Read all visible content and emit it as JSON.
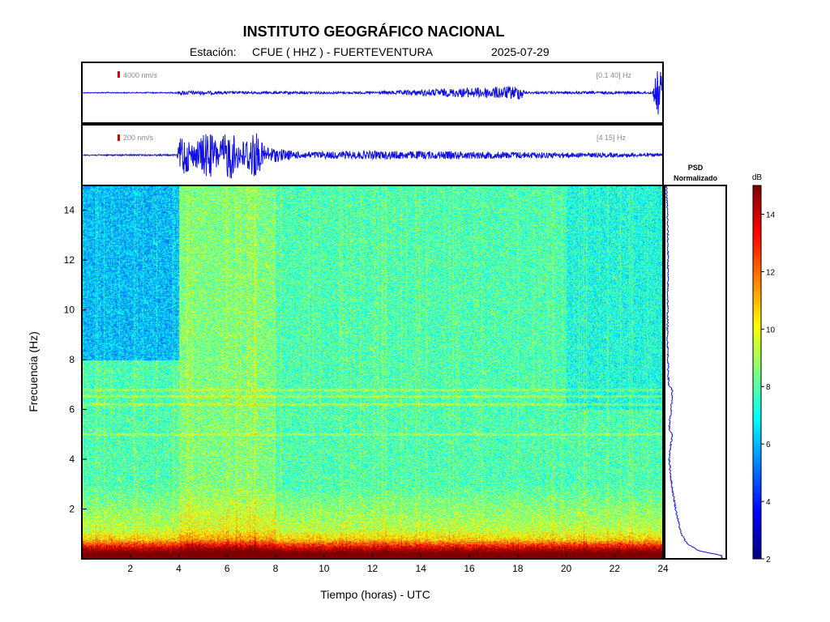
{
  "header": {
    "title": "INSTITUTO GEOGRÁFICO NACIONAL",
    "station_prefix": "Estación:",
    "station": "CFUE ( HHZ ) - FUERTEVENTURA",
    "date": "2025-07-29"
  },
  "colors": {
    "trace": "#1010e6",
    "scale_marker": "#e00000",
    "frame": "#000000"
  },
  "chart_data": [
    {
      "type": "line",
      "name": "seismogram-broadband",
      "scale_label": "4000 nm/s",
      "filter_label": "[0.1 40] Hz",
      "x_range": [
        0,
        24
      ],
      "envelope": [
        {
          "t": 0,
          "a": 0.015
        },
        {
          "t": 3.8,
          "a": 0.02
        },
        {
          "t": 4.1,
          "a": 0.08
        },
        {
          "t": 6,
          "a": 0.05
        },
        {
          "t": 12,
          "a": 0.04
        },
        {
          "t": 18.2,
          "a": 0.25
        },
        {
          "t": 18.3,
          "a": 0.04
        },
        {
          "t": 23.6,
          "a": 0.05
        },
        {
          "t": 23.8,
          "a": 0.9
        },
        {
          "t": 24,
          "a": 0.7
        }
      ]
    },
    {
      "type": "line",
      "name": "seismogram-filtered",
      "scale_label": "200 nm/s",
      "filter_label": "[4 15] Hz",
      "x_range": [
        0,
        24
      ],
      "envelope": [
        {
          "t": 0,
          "a": 0.02
        },
        {
          "t": 3.9,
          "a": 0.03
        },
        {
          "t": 4.1,
          "a": 0.85
        },
        {
          "t": 4.6,
          "a": 0.4
        },
        {
          "t": 5.2,
          "a": 0.9
        },
        {
          "t": 5.6,
          "a": 0.5
        },
        {
          "t": 6.1,
          "a": 0.95
        },
        {
          "t": 6.5,
          "a": 0.4
        },
        {
          "t": 7.1,
          "a": 0.95
        },
        {
          "t": 7.5,
          "a": 0.35
        },
        {
          "t": 8.0,
          "a": 0.25
        },
        {
          "t": 9.0,
          "a": 0.12
        },
        {
          "t": 12.0,
          "a": 0.15
        },
        {
          "t": 15.0,
          "a": 0.14
        },
        {
          "t": 18.0,
          "a": 0.12
        },
        {
          "t": 21.0,
          "a": 0.08
        },
        {
          "t": 24,
          "a": 0.06
        }
      ]
    },
    {
      "type": "heatmap",
      "name": "spectrogram",
      "xlabel": "Tiempo (horas) - UTC",
      "ylabel": "Frecuencia  (Hz)",
      "xlim": [
        0,
        24
      ],
      "ylim": [
        0,
        15
      ],
      "x_ticks": [
        2,
        4,
        6,
        8,
        10,
        12,
        14,
        16,
        18,
        20,
        22,
        24
      ],
      "y_ticks": [
        2,
        4,
        6,
        8,
        10,
        12,
        14
      ],
      "colorscale": "jet",
      "quiet_low_energy_region": {
        "t_start": 0,
        "t_end": 4,
        "f_start": 8,
        "f_end": 15
      },
      "harmonic_lines_hz": [
        5.0,
        6.2,
        6.55,
        6.8
      ],
      "high_energy_band_hz": [
        0,
        0.8
      ],
      "active_period_hours": [
        4,
        8
      ]
    },
    {
      "type": "line",
      "name": "psd",
      "title_line1": "PSD",
      "title_line2": "Normalizado",
      "ylim": [
        0,
        15
      ],
      "profile": [
        {
          "f": 0.1,
          "v": 0.95
        },
        {
          "f": 0.3,
          "v": 0.55
        },
        {
          "f": 0.6,
          "v": 0.35
        },
        {
          "f": 1.0,
          "v": 0.25
        },
        {
          "f": 2.0,
          "v": 0.16
        },
        {
          "f": 3.0,
          "v": 0.09
        },
        {
          "f": 4.0,
          "v": 0.05
        },
        {
          "f": 5.0,
          "v": 0.1
        },
        {
          "f": 5.2,
          "v": 0.05
        },
        {
          "f": 6.0,
          "v": 0.08
        },
        {
          "f": 6.5,
          "v": 0.1
        },
        {
          "f": 6.8,
          "v": 0.1
        },
        {
          "f": 7.0,
          "v": 0.04
        },
        {
          "f": 9.0,
          "v": 0.02
        },
        {
          "f": 12.0,
          "v": 0.03
        },
        {
          "f": 14.0,
          "v": 0.02
        },
        {
          "f": 15.0,
          "v": 0.0
        }
      ]
    },
    {
      "type": "heatmap",
      "name": "colorbar",
      "unit": "dB",
      "ticks": [
        2,
        4,
        6,
        8,
        10,
        12,
        14
      ],
      "range": [
        2,
        15
      ]
    }
  ]
}
